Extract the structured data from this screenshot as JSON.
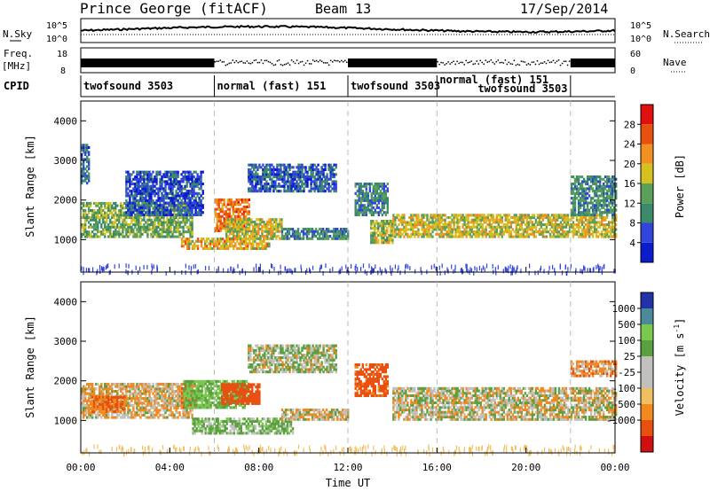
{
  "header": {
    "site": "Prince George (fitACF)",
    "beam": "Beam 13",
    "date": "17/Sep/2014"
  },
  "nsky_panel": {
    "left_label": "N.Sky",
    "right_label": "N.Search",
    "left_ticks": [
      "10^5",
      "10^0"
    ],
    "right_ticks": [
      "10^5",
      "10^0"
    ]
  },
  "freq_panel": {
    "left_label_line1": "Freq.",
    "left_label_line2": "[MHz]",
    "right_label": "Nave",
    "left_ticks": [
      "18",
      "8"
    ],
    "right_ticks": [
      "60",
      "0"
    ]
  },
  "cpid_panel": {
    "label": "CPID",
    "segments": [
      {
        "name": "twofsound 3503",
        "start": 0,
        "end": 6
      },
      {
        "name": "normal (fast) 151",
        "start": 6,
        "end": 12
      },
      {
        "name": "twofsound 3503",
        "start": 12,
        "end": 16
      },
      {
        "name": "normal (fast) 151",
        "start": 16,
        "end": 22
      },
      {
        "name": "twofsound 3503",
        "start": 16,
        "end": 22
      },
      {
        "name": "",
        "start": 22,
        "end": 24
      }
    ]
  },
  "colors": {
    "power": [
      "#0a1ccc",
      "#3344dd",
      "#3b8a6a",
      "#5aa05a",
      "#d6c020",
      "#f09020",
      "#e85010",
      "#e01010"
    ],
    "velocity": [
      "#d01010",
      "#e85010",
      "#f08a20",
      "#f0c060",
      "#c0c0bc",
      "#c0c0bc",
      "#5aa040",
      "#7ac850",
      "#4a8a9a",
      "#2233aa"
    ]
  },
  "chart_data": [
    {
      "type": "heatmap",
      "name": "power",
      "ylabel": "Slant Range [km]",
      "ylim": [
        180,
        4500
      ],
      "yticks": [
        "1000",
        "2000",
        "3000",
        "4000"
      ],
      "xlim": [
        0,
        24
      ],
      "colorbar_label": "Power [dB]",
      "colorbar_ticks": [
        "4",
        "8",
        "12",
        "16",
        "20",
        "24",
        "28"
      ],
      "colorbar_range": [
        0,
        32
      ],
      "regions": [
        {
          "t0": 0.0,
          "t1": 5.0,
          "r0": 1050,
          "r1": 1900,
          "v": 14
        },
        {
          "t0": 0.0,
          "t1": 0.4,
          "r0": 2400,
          "r1": 3400,
          "v": 8
        },
        {
          "t0": 2.0,
          "t1": 5.5,
          "r0": 1600,
          "r1": 2700,
          "v": 6
        },
        {
          "t0": 6.0,
          "t1": 7.6,
          "r0": 1200,
          "r1": 2000,
          "v": 24
        },
        {
          "t0": 6.5,
          "t1": 9.0,
          "r0": 1000,
          "r1": 1500,
          "v": 18
        },
        {
          "t0": 4.5,
          "t1": 8.5,
          "r0": 750,
          "r1": 1050,
          "v": 20
        },
        {
          "t0": 7.5,
          "t1": 11.5,
          "r0": 2200,
          "r1": 2900,
          "v": 7
        },
        {
          "t0": 9.0,
          "t1": 12.0,
          "r0": 1000,
          "r1": 1300,
          "v": 10
        },
        {
          "t0": 12.3,
          "t1": 13.8,
          "r0": 1600,
          "r1": 2400,
          "v": 10
        },
        {
          "t0": 13.0,
          "t1": 14.0,
          "r0": 900,
          "r1": 1500,
          "v": 16
        },
        {
          "t0": 14.0,
          "t1": 24.0,
          "r0": 1050,
          "r1": 1600,
          "v": 18
        },
        {
          "t0": 22.0,
          "t1": 24.0,
          "r0": 1600,
          "r1": 2600,
          "v": 11
        }
      ]
    },
    {
      "type": "heatmap",
      "name": "velocity",
      "ylabel": "Slant Range [km]",
      "ylim": [
        180,
        4500
      ],
      "yticks": [
        "1000",
        "2000",
        "3000",
        "4000"
      ],
      "xlim": [
        0,
        24
      ],
      "xticks": [
        "00:00",
        "04:00",
        "08:00",
        "12:00",
        "16:00",
        "20:00",
        "00:00"
      ],
      "xlabel": "Time UT",
      "colorbar_label": "Velocity [m s^-1]",
      "colorbar_ticks": [
        "-1000",
        "-500",
        "-100",
        "-25",
        "25",
        "100",
        "500",
        "1000"
      ],
      "regions": [
        {
          "t0": 0.0,
          "t1": 5.0,
          "r0": 1050,
          "r1": 1900,
          "v": -25
        },
        {
          "t0": 0.4,
          "t1": 2.0,
          "r0": 1200,
          "r1": 1600,
          "v": -100
        },
        {
          "t0": 4.5,
          "t1": 5.2,
          "r0": 1300,
          "r1": 1900,
          "v": -100
        },
        {
          "t0": 4.6,
          "t1": 7.5,
          "r0": 1300,
          "r1": 2000,
          "v": 100
        },
        {
          "t0": 6.3,
          "t1": 8.0,
          "r0": 1400,
          "r1": 1900,
          "v": -200
        },
        {
          "t0": 5.0,
          "t1": 9.5,
          "r0": 650,
          "r1": 1050,
          "v": 60
        },
        {
          "t0": 7.5,
          "t1": 11.5,
          "r0": 2200,
          "r1": 2900,
          "v": 20
        },
        {
          "t0": 9.0,
          "t1": 12.0,
          "r0": 1000,
          "r1": 1300,
          "v": -20
        },
        {
          "t0": 12.3,
          "t1": 13.8,
          "r0": 1600,
          "r1": 2400,
          "v": -150
        },
        {
          "t0": 14.0,
          "t1": 24.0,
          "r0": 1000,
          "r1": 1800,
          "v": 0
        },
        {
          "t0": 22.0,
          "t1": 24.0,
          "r0": 2100,
          "r1": 2500,
          "v": -60
        }
      ]
    }
  ]
}
